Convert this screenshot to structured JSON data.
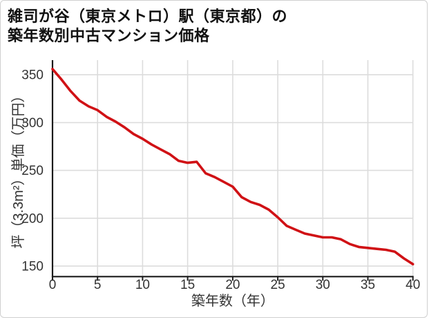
{
  "title": {
    "line1": "雑司が谷（東京メトロ）駅（東京都）の",
    "line2": "築年数別中古マンション価格"
  },
  "chart_data": {
    "type": "line",
    "title": "雑司が谷（東京メトロ）駅（東京都）の築年数別中古マンション価格",
    "xlabel": "築年数（年）",
    "ylabel": "坪（3.3m²）単価（万円）",
    "x": [
      0,
      1,
      2,
      3,
      4,
      5,
      6,
      7,
      8,
      9,
      10,
      11,
      12,
      13,
      14,
      15,
      16,
      17,
      18,
      19,
      20,
      21,
      22,
      23,
      24,
      25,
      26,
      27,
      28,
      29,
      30,
      31,
      32,
      33,
      34,
      35,
      36,
      37,
      38,
      39,
      40
    ],
    "values": [
      356,
      345,
      333,
      323,
      317,
      313,
      306,
      301,
      295,
      288,
      283,
      277,
      272,
      267,
      260,
      258,
      259,
      247,
      243,
      238,
      233,
      222,
      217,
      214,
      209,
      201,
      192,
      188,
      184,
      182,
      180,
      180,
      178,
      173,
      170,
      169,
      168,
      167,
      165,
      158,
      152
    ],
    "x_ticks": [
      0,
      5,
      10,
      15,
      20,
      25,
      30,
      35,
      40
    ],
    "y_ticks": [
      150,
      200,
      250,
      300,
      350
    ],
    "xlim": [
      0,
      40
    ],
    "ylim": [
      139,
      365.3
    ],
    "grid": true,
    "legend": false,
    "line_color": "#d01115",
    "grid_color": "#dcdcdc",
    "axis_color": "#1a1a1a",
    "tick_label_color": "#333333"
  }
}
